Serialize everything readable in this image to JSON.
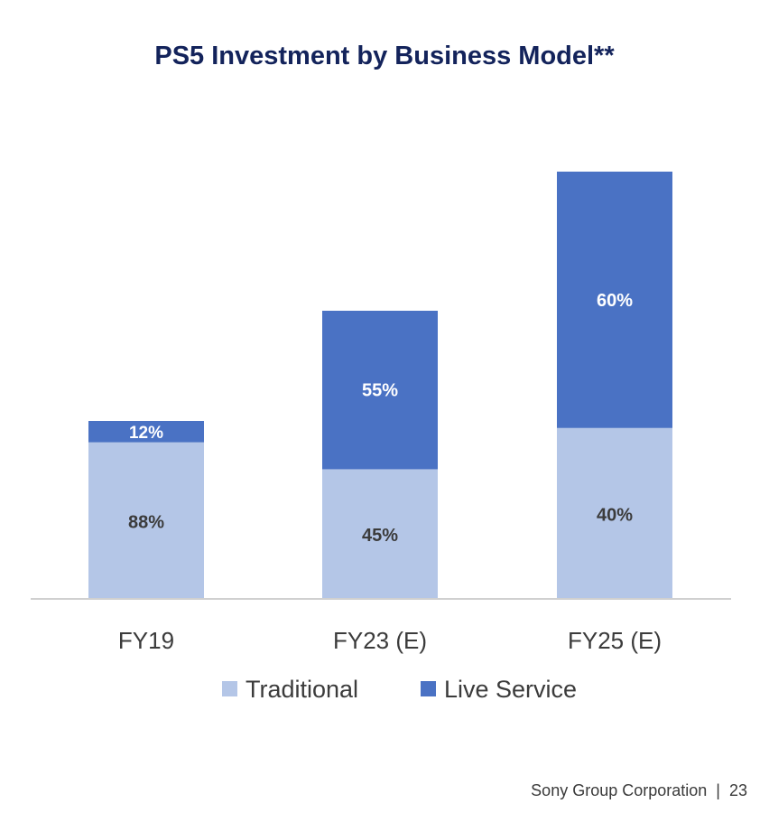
{
  "title": "PS5 Investment by Business Model**",
  "footer": {
    "company": "Sony Group Corporation",
    "separator": "|",
    "page": "23"
  },
  "colors": {
    "traditional": "#b4c6e7",
    "live_service": "#4a72c4",
    "axis": "#d0d0d0",
    "label_dark": "#3b3b3b",
    "label_light": "#ffffff"
  },
  "chart_data": {
    "type": "bar",
    "stacked": true,
    "categories": [
      "FY19",
      "FY23 (E)",
      "FY25 (E)"
    ],
    "series": [
      {
        "name": "Traditional",
        "values": [
          88,
          45,
          40
        ],
        "labels": [
          "88%",
          "45%",
          "40%"
        ]
      },
      {
        "name": "Live Service",
        "values": [
          12,
          55,
          60
        ],
        "labels": [
          "12%",
          "55%",
          "60%"
        ]
      }
    ],
    "legend": "bottom",
    "grid": false
  }
}
